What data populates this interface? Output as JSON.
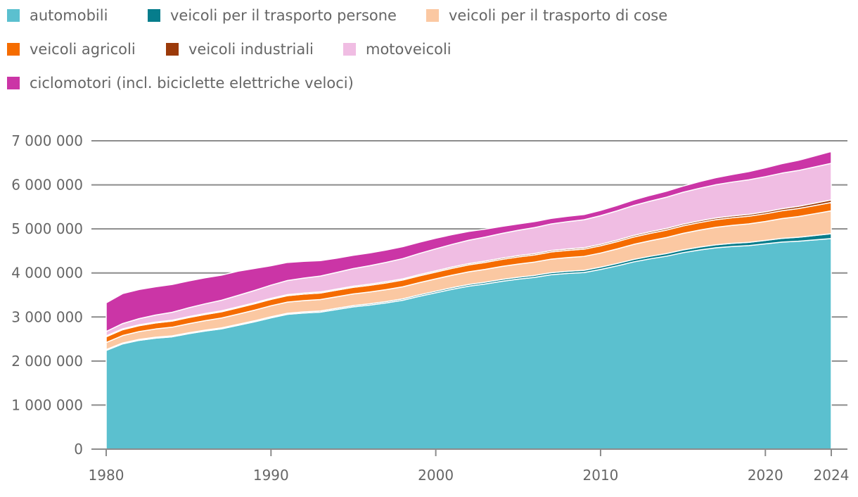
{
  "chart_data": {
    "type": "area",
    "stacked": true,
    "title": "",
    "xlabel": "",
    "ylabel": "",
    "x": [
      1980,
      1981,
      1982,
      1983,
      1984,
      1985,
      1986,
      1987,
      1988,
      1989,
      1990,
      1991,
      1992,
      1993,
      1994,
      1995,
      1996,
      1997,
      1998,
      1999,
      2000,
      2001,
      2002,
      2003,
      2004,
      2005,
      2006,
      2007,
      2008,
      2009,
      2010,
      2011,
      2012,
      2013,
      2014,
      2015,
      2016,
      2017,
      2018,
      2019,
      2020,
      2021,
      2022,
      2023,
      2024
    ],
    "xlim": [
      1980,
      2024
    ],
    "ylim": [
      0,
      7000000
    ],
    "x_ticks": [
      1980,
      1990,
      2000,
      2010,
      2020,
      2024
    ],
    "x_tick_labels": [
      "1980",
      "1990",
      "2000",
      "2010",
      "2020",
      "2024"
    ],
    "y_ticks": [
      0,
      1000000,
      2000000,
      3000000,
      4000000,
      5000000,
      6000000,
      7000000
    ],
    "y_tick_labels": [
      "0",
      "1 000 000",
      "2 000 000",
      "3 000 000",
      "4 000 000",
      "5 000 000",
      "6 000 000",
      "7 000 000"
    ],
    "grid": "horizontal",
    "legend_position": "top-left",
    "series_unit_multiplier": 1000,
    "series": [
      {
        "name": "automobili",
        "color": "#5bc0cf",
        "values": [
          2240,
          2390,
          2470,
          2520,
          2550,
          2620,
          2680,
          2730,
          2810,
          2890,
          2980,
          3060,
          3090,
          3110,
          3170,
          3230,
          3270,
          3320,
          3380,
          3470,
          3550,
          3630,
          3700,
          3750,
          3810,
          3860,
          3900,
          3960,
          3990,
          4010,
          4080,
          4160,
          4250,
          4320,
          4380,
          4460,
          4520,
          4570,
          4600,
          4620,
          4660,
          4700,
          4720,
          4750,
          4780
        ]
      },
      {
        "name": "veicoli per il trasporto persone",
        "color": "#067d8c",
        "values": [
          20,
          20,
          21,
          21,
          22,
          22,
          22,
          23,
          23,
          24,
          25,
          25,
          26,
          27,
          28,
          29,
          30,
          31,
          32,
          33,
          35,
          36,
          38,
          39,
          41,
          42,
          44,
          46,
          48,
          50,
          52,
          54,
          56,
          58,
          60,
          63,
          66,
          69,
          72,
          75,
          78,
          84,
          90,
          100,
          110
        ]
      },
      {
        "name": "veicoli per il trasporto di cose",
        "color": "#fbc8a2",
        "values": [
          160,
          169,
          178,
          187,
          196,
          205,
          214,
          223,
          232,
          241,
          250,
          253,
          256,
          259,
          262,
          265,
          268,
          271,
          274,
          277,
          280,
          284,
          288,
          292,
          296,
          300,
          304,
          308,
          312,
          316,
          320,
          331,
          342,
          353,
          364,
          375,
          386,
          397,
          408,
          419,
          430,
          450,
          470,
          495,
          520
        ]
      },
      {
        "name": "veicoli agricoli",
        "color": "#f56c00",
        "values": [
          130,
          132,
          134,
          136,
          138,
          140,
          141,
          142,
          143,
          144,
          145,
          146,
          147,
          148,
          149,
          150,
          151,
          152,
          153,
          154,
          155,
          156,
          157,
          158,
          159,
          160,
          161,
          162,
          163,
          164,
          165,
          166,
          167,
          168,
          169,
          170,
          171,
          172,
          173,
          174,
          175,
          178,
          181,
          185,
          190
        ]
      },
      {
        "name": "veicoli industriali",
        "color": "#9b3a0a",
        "values": [
          20,
          20,
          20,
          21,
          21,
          21,
          22,
          22,
          22,
          23,
          23,
          24,
          24,
          25,
          25,
          26,
          26,
          27,
          27,
          28,
          28,
          29,
          29,
          30,
          30,
          31,
          31,
          32,
          32,
          33,
          33,
          34,
          35,
          36,
          37,
          38,
          39,
          40,
          41,
          42,
          43,
          46,
          50,
          54,
          58
        ]
      },
      {
        "name": "motoveicoli",
        "color": "#f0bde3",
        "values": [
          100,
          120,
          140,
          160,
          180,
          200,
          220,
          240,
          260,
          280,
          300,
          320,
          340,
          360,
          380,
          400,
          420,
          440,
          460,
          480,
          500,
          515,
          530,
          545,
          560,
          575,
          590,
          605,
          620,
          635,
          650,
          665,
          680,
          695,
          710,
          725,
          740,
          755,
          770,
          785,
          800,
          808,
          815,
          822,
          830
        ]
      },
      {
        "name": "ciclomotori (incl. biciclette elettriche veloci)",
        "color": "#cb35a6",
        "values": [
          650,
          680,
          660,
          640,
          630,
          610,
          590,
          570,
          550,
          500,
          440,
          410,
          380,
          350,
          320,
          300,
          290,
          280,
          270,
          255,
          240,
          220,
          200,
          180,
          160,
          145,
          135,
          125,
          120,
          118,
          120,
          122,
          125,
          130,
          135,
          140,
          150,
          160,
          170,
          185,
          200,
          215,
          230,
          250,
          270
        ]
      }
    ]
  }
}
